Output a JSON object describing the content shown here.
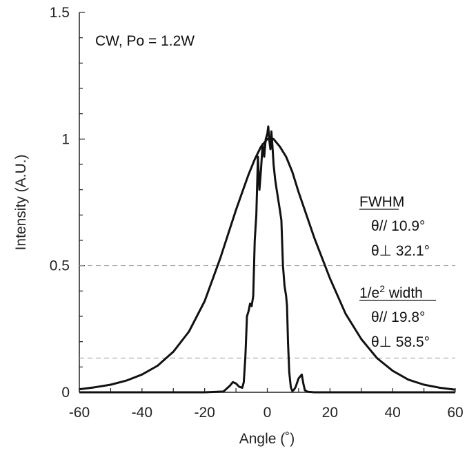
{
  "chart_data": {
    "type": "line",
    "title": "",
    "xlabel": "Angle  (˚)",
    "ylabel": "Intensity  (A.U.)",
    "xlim": [
      -60,
      60
    ],
    "ylim": [
      0,
      1.5
    ],
    "xticks": [
      "-60",
      "-40",
      "-20",
      "0",
      "20",
      "40",
      "60"
    ],
    "yticks": [
      "0",
      "0.5",
      "1",
      "1.5"
    ],
    "grid": false,
    "reference_lines": [
      0.5,
      0.1353
    ],
    "annotation_condition": "CW, Po = 1.2W",
    "annotations": {
      "fwhm_heading": "FWHM",
      "fwhm_parallel": "θ//  10.9°",
      "fwhm_perp": "θ⊥  32.1°",
      "e2_heading_main": "1/e",
      "e2_heading_sup": "2",
      "e2_heading_rest": " width",
      "e2_parallel": "θ//  19.8°",
      "e2_perp": "θ⊥  58.5°"
    },
    "series": [
      {
        "x": [
          -60,
          -55,
          -50,
          -45,
          -40,
          -35,
          -30,
          -25,
          -20,
          -15,
          -10,
          -8,
          -6,
          -4,
          -2,
          0,
          2,
          4,
          6,
          8,
          10,
          15,
          20,
          25,
          30,
          35,
          40,
          45,
          50,
          55,
          60
        ],
        "y": [
          0.012,
          0.02,
          0.03,
          0.046,
          0.07,
          0.105,
          0.16,
          0.24,
          0.36,
          0.53,
          0.72,
          0.79,
          0.86,
          0.92,
          0.97,
          1.0,
          1.0,
          0.97,
          0.93,
          0.87,
          0.79,
          0.61,
          0.45,
          0.31,
          0.21,
          0.135,
          0.085,
          0.05,
          0.03,
          0.018,
          0.01
        ]
      },
      {
        "x": [
          -60,
          -20,
          -14,
          -12,
          -11,
          -10,
          -9,
          -8,
          -7.5,
          -7,
          -6.8,
          -6.5,
          -6,
          -5.5,
          -5,
          -4.5,
          -4,
          -3.5,
          -3,
          -2.5,
          -2,
          -1.5,
          -1,
          -0.5,
          0,
          0.3,
          0.6,
          1,
          1.3,
          1.6,
          2,
          2.5,
          3,
          3.5,
          4,
          4.5,
          5,
          5.5,
          6,
          6.3,
          6.6,
          7,
          7.5,
          8,
          8.5,
          9,
          10,
          11,
          11.5,
          12,
          13,
          15,
          20,
          60
        ],
        "y": [
          0,
          0,
          0.003,
          0.025,
          0.04,
          0.035,
          0.022,
          0.018,
          0.04,
          0.14,
          0.2,
          0.3,
          0.32,
          0.35,
          0.34,
          0.38,
          0.6,
          0.7,
          0.93,
          0.8,
          0.88,
          0.98,
          0.93,
          1.0,
          1.02,
          1.05,
          1.0,
          0.96,
          1.03,
          0.98,
          0.9,
          0.84,
          0.8,
          0.76,
          0.72,
          0.68,
          0.5,
          0.42,
          0.38,
          0.34,
          0.2,
          0.08,
          0.02,
          0.005,
          0.01,
          0.02,
          0.055,
          0.07,
          0.035,
          0.008,
          0.002,
          0,
          0,
          0
        ]
      }
    ]
  }
}
